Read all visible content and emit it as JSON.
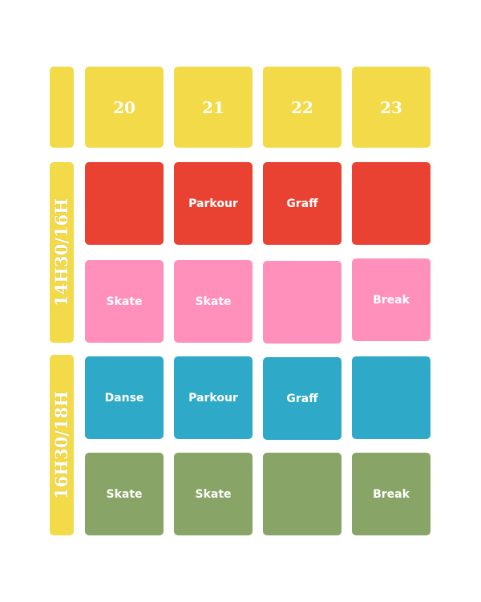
{
  "days": [
    "20",
    "21",
    "22",
    "23"
  ],
  "slots": [
    {
      "label": "14H30/16H",
      "rows": [
        {
          "color": "#e94232",
          "cells": [
            "",
            "Parkour",
            "Graff",
            ""
          ]
        },
        {
          "color": "#ff90bb",
          "cells": [
            "Skate",
            "Skate",
            "",
            "Break"
          ]
        }
      ]
    },
    {
      "label": "16H30/18H",
      "rows": [
        {
          "color": "#2eaac8",
          "cells": [
            "Danse",
            "Parkour",
            "Graff",
            ""
          ]
        },
        {
          "color": "#88a466",
          "cells": [
            "Skate",
            "Skate",
            "",
            "Break"
          ]
        }
      ]
    }
  ],
  "colors": {
    "header": "#f2da48"
  }
}
